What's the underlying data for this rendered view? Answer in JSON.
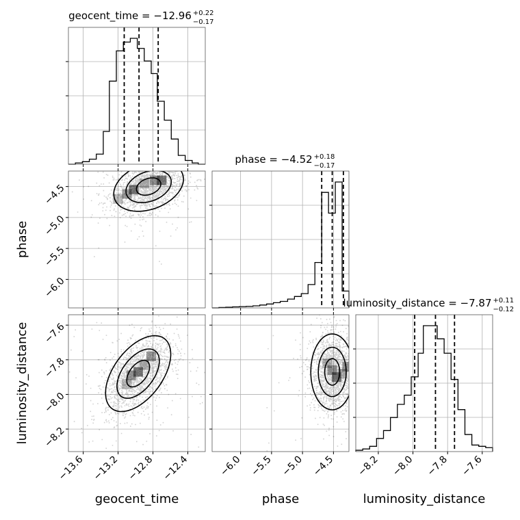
{
  "chart_data": {
    "type": "corner",
    "parameters": [
      "geocent_time",
      "phase",
      "luminosity_distance"
    ],
    "axis_labels": {
      "geocent_time": "geocent_time",
      "phase": "phase",
      "luminosity_distance": "luminosity_distance"
    },
    "titles": {
      "geocent_time": {
        "text": "geocent_time = −12.96",
        "plus": "+0.22",
        "minus": "−0.17"
      },
      "phase": {
        "text": "phase = −4.52",
        "plus": "+0.18",
        "minus": "−0.17"
      },
      "luminosity_distance": {
        "text": "luminosity_distance = −7.87",
        "plus": "+0.11",
        "minus": "−0.12"
      }
    },
    "ranges": {
      "geocent_time": [
        -13.77,
        -12.2
      ],
      "phase": [
        -6.46,
        -4.25
      ],
      "luminosity_distance": [
        -8.33,
        -7.54
      ]
    },
    "ticks": {
      "geocent_time": {
        "values": [
          -13.6,
          -13.2,
          -12.8,
          -12.4
        ],
        "labels": [
          "−13.6",
          "−13.2",
          "−12.8",
          "−12.4"
        ]
      },
      "phase": {
        "values": [
          -6.0,
          -5.5,
          -5.0,
          -4.5
        ],
        "labels": [
          "−6.0",
          "−5.5",
          "−5.0",
          "−4.5"
        ]
      },
      "luminosity_distance": {
        "values": [
          -8.2,
          -8.0,
          -7.8,
          -7.6
        ],
        "labels": [
          "−8.2",
          "−8.0",
          "−7.8",
          "−7.6"
        ]
      }
    },
    "quantiles": {
      "geocent_time": [
        -13.13,
        -12.96,
        -12.74
      ],
      "phase": [
        -4.69,
        -4.52,
        -4.34
      ],
      "luminosity_distance": [
        -7.99,
        -7.87,
        -7.76
      ]
    },
    "histograms": {
      "geocent_time": {
        "edges": [
          -13.77,
          -13.69,
          -13.61,
          -13.53,
          -13.45,
          -13.37,
          -13.3,
          -13.22,
          -13.14,
          -13.06,
          -12.98,
          -12.9,
          -12.82,
          -12.75,
          -12.67,
          -12.59,
          -12.51,
          -12.43,
          -12.35,
          -12.28,
          -12.2
        ],
        "counts": [
          0,
          0.01,
          0.02,
          0.04,
          0.08,
          0.26,
          0.66,
          0.9,
          0.97,
          1.0,
          0.92,
          0.82,
          0.72,
          0.5,
          0.35,
          0.2,
          0.07,
          0.03,
          0.01,
          0
        ]
      },
      "phase": {
        "edges": [
          -6.46,
          -6.35,
          -6.24,
          -6.13,
          -6.02,
          -5.91,
          -5.8,
          -5.69,
          -5.58,
          -5.47,
          -5.36,
          -5.24,
          -5.13,
          -5.02,
          -4.91,
          -4.8,
          -4.69,
          -4.58,
          -4.47,
          -4.36,
          -4.25
        ],
        "counts": [
          0,
          0.003,
          0.005,
          0.008,
          0.01,
          0.012,
          0.016,
          0.022,
          0.03,
          0.04,
          0.05,
          0.068,
          0.088,
          0.11,
          0.18,
          0.35,
          0.89,
          0.73,
          0.97,
          0.13
        ]
      },
      "luminosity_distance": {
        "edges": [
          -8.33,
          -8.29,
          -8.25,
          -8.21,
          -8.17,
          -8.13,
          -8.09,
          -8.05,
          -8.01,
          -7.97,
          -7.94,
          -7.9,
          -7.86,
          -7.82,
          -7.78,
          -7.74,
          -7.7,
          -7.66,
          -7.62,
          -7.58,
          -7.54
        ],
        "counts": [
          0.01,
          0.02,
          0.04,
          0.1,
          0.16,
          0.26,
          0.36,
          0.43,
          0.57,
          0.75,
          0.96,
          0.96,
          0.86,
          0.75,
          0.55,
          0.32,
          0.13,
          0.05,
          0.04,
          0.03
        ]
      }
    },
    "pairs": [
      {
        "x": "geocent_time",
        "y": "phase",
        "mean": [
          -12.85,
          -4.5
        ],
        "cov": [
          [
            0.04,
            0.012
          ],
          [
            0.012,
            0.04
          ]
        ],
        "density_cells": [
          [
            -13.2,
            -4.7
          ],
          [
            -13.1,
            -4.62
          ],
          [
            -13.02,
            -4.55
          ],
          [
            -12.9,
            -4.45
          ],
          [
            -12.78,
            -4.4
          ],
          [
            -12.7,
            -4.4
          ]
        ]
      },
      {
        "x": "geocent_time",
        "y": "luminosity_distance",
        "mean": [
          -12.97,
          -7.88
        ],
        "cov": [
          [
            0.035,
            0.0105
          ],
          [
            0.0105,
            0.012
          ]
        ],
        "density_cells": [
          [
            -13.1,
            -7.94
          ],
          [
            -13.05,
            -7.89
          ],
          [
            -12.97,
            -7.87
          ],
          [
            -12.9,
            -7.83
          ],
          [
            -12.82,
            -7.78
          ]
        ]
      },
      {
        "x": "phase",
        "y": "luminosity_distance",
        "mean": [
          -4.52,
          -7.87
        ],
        "cov": [
          [
            0.03,
            0.0
          ],
          [
            0.0,
            0.012
          ]
        ],
        "density_cells": [
          [
            -4.6,
            -7.82
          ],
          [
            -4.52,
            -7.86
          ],
          [
            -4.45,
            -7.9
          ],
          [
            -4.35,
            -7.88
          ],
          [
            -4.28,
            -7.84
          ]
        ]
      }
    ],
    "grid": true
  }
}
